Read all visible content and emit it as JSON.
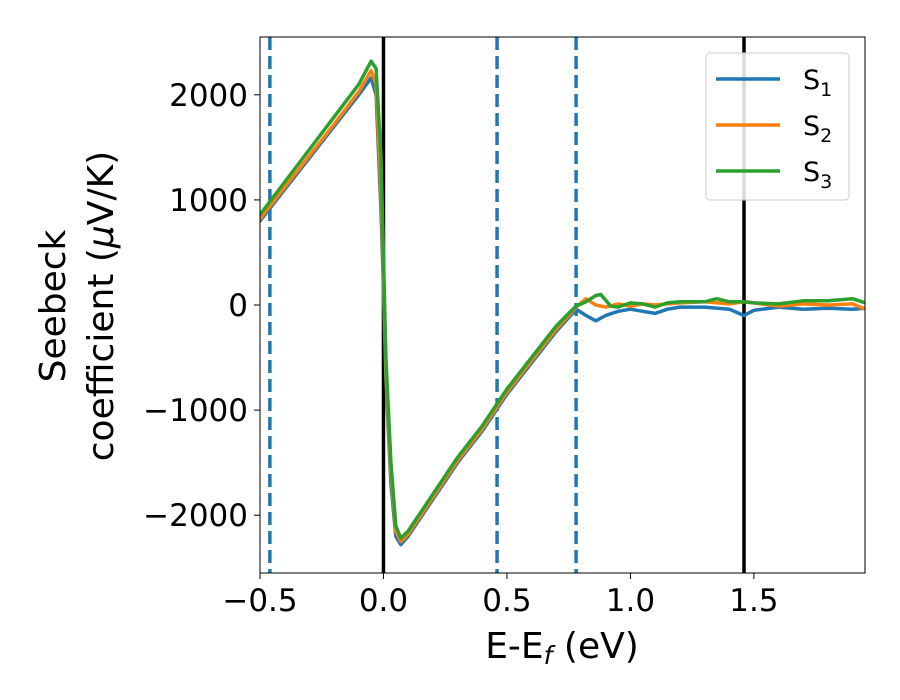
{
  "chart_data": {
    "type": "line",
    "title": "",
    "xlabel": "E-E",
    "xlabel_sub": "f",
    "xlabel_unit": " (eV)",
    "ylabel_line1": "Seebeck",
    "ylabel_line2_pre": "coefficient  (",
    "ylabel_mu": "μ",
    "ylabel_line2_post": "V/K)",
    "xlim": [
      -0.5,
      1.95
    ],
    "ylim": [
      -2550,
      2550
    ],
    "xticks": [
      -0.5,
      0.0,
      0.5,
      1.0,
      1.5
    ],
    "xtick_labels": [
      "−0.5",
      "0.0",
      "0.5",
      "1.0",
      "1.5"
    ],
    "yticks": [
      -2000,
      -1000,
      0,
      1000,
      2000
    ],
    "ytick_labels": [
      "−2000",
      "−1000",
      "0",
      "1000",
      "2000"
    ],
    "grid": false,
    "legend_position": "top-right",
    "vlines_solid": [
      0.0,
      1.46
    ],
    "vlines_dashed": [
      -0.46,
      0.46,
      0.78
    ],
    "vline_solid_color": "#000000",
    "vline_dashed_color": "#1f77b4",
    "series": [
      {
        "name": "S",
        "sub": "1",
        "color": "#1f77b4",
        "x": [
          -0.5,
          -0.4,
          -0.3,
          -0.2,
          -0.1,
          -0.05,
          -0.03,
          -0.01,
          0.0,
          0.01,
          0.03,
          0.05,
          0.07,
          0.1,
          0.2,
          0.3,
          0.4,
          0.5,
          0.6,
          0.7,
          0.75,
          0.78,
          0.82,
          0.86,
          0.9,
          0.95,
          1.0,
          1.05,
          1.1,
          1.15,
          1.2,
          1.3,
          1.4,
          1.46,
          1.5,
          1.6,
          1.7,
          1.8,
          1.9,
          1.95
        ],
        "y": [
          800,
          1100,
          1400,
          1700,
          2000,
          2160,
          2000,
          900,
          150,
          -700,
          -1700,
          -2200,
          -2280,
          -2200,
          -1850,
          -1500,
          -1200,
          -850,
          -550,
          -250,
          -120,
          -40,
          -100,
          -150,
          -100,
          -60,
          -40,
          -60,
          -80,
          -40,
          -20,
          -20,
          -40,
          -100,
          -50,
          -20,
          -40,
          -30,
          -40,
          -30
        ]
      },
      {
        "name": "S",
        "sub": "2",
        "color": "#ff7f0e",
        "x": [
          -0.5,
          -0.4,
          -0.3,
          -0.2,
          -0.1,
          -0.05,
          -0.03,
          -0.01,
          0.0,
          0.01,
          0.03,
          0.05,
          0.07,
          0.1,
          0.2,
          0.3,
          0.4,
          0.5,
          0.6,
          0.7,
          0.75,
          0.78,
          0.82,
          0.86,
          0.9,
          0.95,
          1.0,
          1.05,
          1.1,
          1.15,
          1.2,
          1.3,
          1.4,
          1.46,
          1.5,
          1.6,
          1.7,
          1.8,
          1.9,
          1.95
        ],
        "y": [
          820,
          1120,
          1420,
          1720,
          2030,
          2230,
          2100,
          1100,
          300,
          -600,
          -1600,
          -2150,
          -2250,
          -2180,
          -1830,
          -1480,
          -1180,
          -830,
          -530,
          -230,
          -100,
          -20,
          60,
          0,
          -20,
          10,
          -10,
          10,
          0,
          10,
          20,
          30,
          10,
          30,
          20,
          -10,
          10,
          0,
          10,
          -40
        ]
      },
      {
        "name": "S",
        "sub": "3",
        "color": "#2ca02c",
        "x": [
          -0.5,
          -0.4,
          -0.3,
          -0.2,
          -0.1,
          -0.05,
          -0.03,
          -0.01,
          0.0,
          0.01,
          0.03,
          0.05,
          0.07,
          0.1,
          0.2,
          0.3,
          0.4,
          0.5,
          0.6,
          0.7,
          0.75,
          0.78,
          0.82,
          0.86,
          0.88,
          0.92,
          0.95,
          1.0,
          1.05,
          1.1,
          1.15,
          1.2,
          1.3,
          1.35,
          1.4,
          1.46,
          1.5,
          1.6,
          1.7,
          1.8,
          1.9,
          1.95
        ],
        "y": [
          860,
          1170,
          1480,
          1790,
          2100,
          2320,
          2250,
          1400,
          450,
          -500,
          -1500,
          -2100,
          -2220,
          -2150,
          -1800,
          -1450,
          -1150,
          -800,
          -500,
          -200,
          -80,
          -10,
          30,
          90,
          100,
          -10,
          -20,
          20,
          10,
          -20,
          20,
          30,
          30,
          60,
          30,
          30,
          20,
          10,
          40,
          40,
          60,
          20
        ]
      }
    ]
  }
}
